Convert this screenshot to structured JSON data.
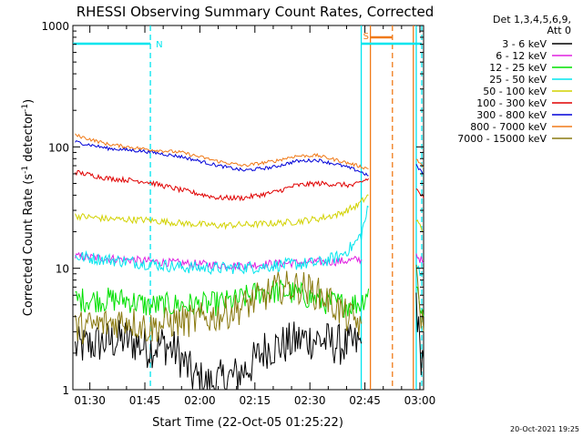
{
  "chart_data": {
    "type": "line",
    "title": "RHESSI Observing Summary Count Rates, Corrected",
    "xlabel": "Start Time (22-Oct-05 01:25:22)",
    "ylabel": "Corrected Count Rate (s",
    "ylabel_sup1": "-1",
    "ylabel_mid": " detector",
    "ylabel_sup2": "-1",
    "ylabel_end": ")",
    "y_scale": "log",
    "ylim": [
      1,
      1000
    ],
    "xlim_min": [
      85.37,
      181
    ],
    "x_ticks": [
      "01:30",
      "01:45",
      "02:00",
      "02:15",
      "02:30",
      "02:45",
      "03:00"
    ],
    "x_tick_minutes": [
      90,
      105,
      120,
      135,
      150,
      165,
      180
    ],
    "y_ticks": [
      "1",
      "10",
      "100",
      "1000"
    ],
    "legend_header": [
      "Det 1,3,4,5,6,9,",
      "Att 0"
    ],
    "legend_placement": "right",
    "footer_date": "20-Oct-2021 19:25",
    "background": "#ffffff",
    "annotations": [
      {
        "label": "N",
        "color": "#00e5ee",
        "x_start": 85.4,
        "x_end": 106.5,
        "dashed_at": 106.5
      },
      {
        "label": "S",
        "color": "#f07a18",
        "x_start": 166.5,
        "x_end": 172.5
      },
      {
        "label": "",
        "color": "#00e5ee",
        "x_start": 164.0,
        "x_end": 180.5,
        "dashed_at": 180.5
      }
    ],
    "verticals": [
      {
        "x": 164.0,
        "color": "#00e5ee",
        "style": "solid"
      },
      {
        "x": 166.5,
        "color": "#f07a18",
        "style": "solid"
      },
      {
        "x": 172.5,
        "color": "#f07a18",
        "style": "dashed"
      },
      {
        "x": 178.2,
        "color": "#f07a18",
        "style": "solid"
      },
      {
        "x": 179.0,
        "color": "#00e5ee",
        "style": "solid"
      },
      {
        "x": 106.5,
        "color": "#00e5ee",
        "style": "dashed"
      },
      {
        "x": 180.5,
        "color": "#00e5ee",
        "style": "dashed"
      }
    ],
    "series": [
      {
        "name": "3 - 6 keV",
        "color": "#000000",
        "points": [
          [
            86,
            2.2
          ],
          [
            95,
            2.5
          ],
          [
            100,
            2.6
          ],
          [
            106,
            2.2
          ],
          [
            110,
            2.4
          ],
          [
            114,
            2.0
          ],
          [
            118,
            1.3
          ],
          [
            122,
            1.1
          ],
          [
            126,
            1.2
          ],
          [
            130,
            1.3
          ],
          [
            134,
            1.6
          ],
          [
            138,
            2.2
          ],
          [
            142,
            2.3
          ],
          [
            148,
            2.6
          ],
          [
            152,
            2.6
          ],
          [
            156,
            2.4
          ],
          [
            160,
            2.3
          ],
          [
            164,
            2.4
          ],
          [
            179,
            6.0
          ],
          [
            180,
            2.0
          ],
          [
            181,
            1.8
          ]
        ],
        "noise": 0.5
      },
      {
        "name": "6 - 12 keV",
        "color": "#e020e0",
        "points": [
          [
            86,
            12.5
          ],
          [
            100,
            11.8
          ],
          [
            110,
            11.2
          ],
          [
            120,
            10.8
          ],
          [
            130,
            10.5
          ],
          [
            140,
            10.9
          ],
          [
            150,
            11.2
          ],
          [
            158,
            11.4
          ],
          [
            164,
            11.8
          ],
          [
            179,
            13.0
          ],
          [
            181,
            11.0
          ]
        ],
        "noise": 0.1
      },
      {
        "name": "12 - 25 keV",
        "color": "#00e000",
        "points": [
          [
            86,
            5.5
          ],
          [
            100,
            5.5
          ],
          [
            106,
            4.9
          ],
          [
            114,
            5.0
          ],
          [
            122,
            5.0
          ],
          [
            130,
            5.4
          ],
          [
            136,
            6.3
          ],
          [
            142,
            6.5
          ],
          [
            148,
            6.0
          ],
          [
            154,
            5.3
          ],
          [
            160,
            5.0
          ],
          [
            164,
            5.2
          ],
          [
            166,
            6.8
          ],
          [
            179,
            7.0
          ],
          [
            181,
            4.0
          ]
        ],
        "noise": 0.3
      },
      {
        "name": "25 - 50 keV",
        "color": "#00e5ee",
        "points": [
          [
            86,
            12.5
          ],
          [
            95,
            11.8
          ],
          [
            105,
            11.0
          ],
          [
            115,
            10.2
          ],
          [
            125,
            10.0
          ],
          [
            135,
            10.2
          ],
          [
            145,
            10.8
          ],
          [
            152,
            11.0
          ],
          [
            158,
            12.5
          ],
          [
            162,
            15.5
          ],
          [
            164,
            19.0
          ],
          [
            166,
            32.0
          ],
          [
            179,
            10.5
          ],
          [
            181,
            9.0
          ]
        ],
        "noise": 0.15
      },
      {
        "name": "50 - 100 keV",
        "color": "#d2d200",
        "points": [
          [
            86,
            27
          ],
          [
            95,
            25.5
          ],
          [
            105,
            25
          ],
          [
            115,
            23.5
          ],
          [
            125,
            22.5
          ],
          [
            135,
            23
          ],
          [
            145,
            24
          ],
          [
            152,
            25.5
          ],
          [
            158,
            28
          ],
          [
            163,
            33
          ],
          [
            166,
            40
          ],
          [
            179,
            25
          ],
          [
            181,
            20
          ]
        ],
        "noise": 0.08
      },
      {
        "name": "100 - 300 keV",
        "color": "#e00000",
        "points": [
          [
            86,
            62
          ],
          [
            95,
            55
          ],
          [
            105,
            52
          ],
          [
            115,
            44
          ],
          [
            125,
            38
          ],
          [
            132,
            38
          ],
          [
            140,
            42
          ],
          [
            146,
            48
          ],
          [
            152,
            50
          ],
          [
            158,
            49
          ],
          [
            162,
            48
          ],
          [
            166,
            55
          ],
          [
            178,
            55
          ],
          [
            179,
            45
          ],
          [
            181,
            38
          ]
        ],
        "noise": 0.06
      },
      {
        "name": "300 - 800 keV",
        "color": "#0000d8",
        "points": [
          [
            86,
            110
          ],
          [
            95,
            97
          ],
          [
            105,
            92
          ],
          [
            115,
            83
          ],
          [
            125,
            70
          ],
          [
            132,
            64
          ],
          [
            140,
            68
          ],
          [
            146,
            76
          ],
          [
            152,
            78
          ],
          [
            158,
            71
          ],
          [
            163,
            64
          ],
          [
            166,
            58
          ],
          [
            178,
            80
          ],
          [
            179,
            70
          ],
          [
            181,
            60
          ]
        ],
        "noise": 0.04
      },
      {
        "name": "800 - 7000 keV",
        "color": "#f07a18",
        "points": [
          [
            86,
            125
          ],
          [
            95,
            105
          ],
          [
            105,
            96
          ],
          [
            115,
            90
          ],
          [
            125,
            76
          ],
          [
            132,
            70
          ],
          [
            140,
            76
          ],
          [
            146,
            84
          ],
          [
            152,
            85
          ],
          [
            158,
            77
          ],
          [
            163,
            70
          ],
          [
            166,
            66
          ],
          [
            178,
            95
          ],
          [
            179,
            80
          ],
          [
            181,
            68
          ]
        ],
        "noise": 0.04
      },
      {
        "name": "7000 - 15000 keV",
        "color": "#8a7a10",
        "points": [
          [
            86,
            3.2
          ],
          [
            95,
            3.5
          ],
          [
            100,
            3.8
          ],
          [
            106,
            3.2
          ],
          [
            112,
            3.6
          ],
          [
            118,
            3.7
          ],
          [
            124,
            4.0
          ],
          [
            130,
            4.6
          ],
          [
            136,
            5.6
          ],
          [
            142,
            7.0
          ],
          [
            148,
            7.0
          ],
          [
            154,
            5.8
          ],
          [
            160,
            4.0
          ],
          [
            164,
            3.5
          ],
          [
            179,
            8.0
          ],
          [
            181,
            3.0
          ]
        ],
        "noise": 0.4
      }
    ]
  }
}
